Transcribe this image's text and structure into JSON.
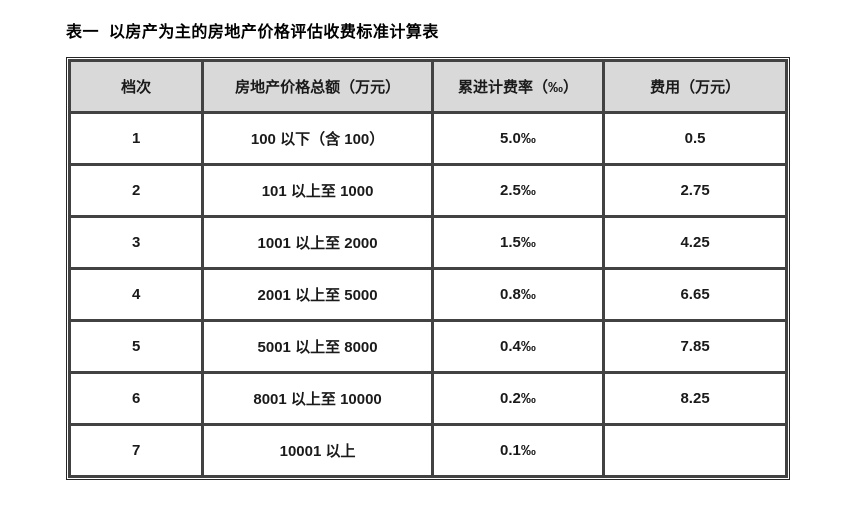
{
  "page": {
    "title": "表一  以房产为主的房地产价格评估收费标准计算表"
  },
  "table": {
    "headers": [
      "档次",
      "房地产价格总额（万元）",
      "累进计费率（‰）",
      "费用（万元）"
    ],
    "rows": [
      [
        "1",
        "100 以下（含 100）",
        "5.0‰",
        "0.5"
      ],
      [
        "2",
        "101 以上至 1000",
        "2.5‰",
        "2.75"
      ],
      [
        "3",
        "1001 以上至 2000",
        "1.5‰",
        "4.25"
      ],
      [
        "4",
        "2001 以上至 5000",
        "0.8‰",
        "6.65"
      ],
      [
        "5",
        "5001 以上至 8000",
        "0.4‰",
        "7.85"
      ],
      [
        "6",
        "8001 以上至 10000",
        "0.2‰",
        "8.25"
      ],
      [
        "7",
        "10001 以上",
        "0.1‰",
        ""
      ]
    ],
    "colors": {
      "header_bg": "#d9d9d9",
      "border": "#424242",
      "text": "#1a1a1a"
    }
  },
  "chart_data": {
    "type": "table",
    "title": "表一 以房产为主的房地产价格评估收费标准计算表",
    "columns": [
      "档次",
      "房地产价格总额（万元）",
      "累进计费率（‰）",
      "费用（万元）"
    ],
    "grades": [
      1,
      2,
      3,
      4,
      5,
      6,
      7
    ],
    "price_ranges": [
      "100 以下（含 100）",
      "101 以上至 1000",
      "1001 以上至 2000",
      "2001 以上至 5000",
      "5001 以上至 8000",
      "8001 以上至 10000",
      "10001 以上"
    ],
    "progressive_rates_permille": [
      5.0,
      2.5,
      1.5,
      0.8,
      0.4,
      0.2,
      0.1
    ],
    "fees_wan_yuan": [
      0.5,
      2.75,
      4.25,
      6.65,
      7.85,
      8.25,
      null
    ]
  }
}
